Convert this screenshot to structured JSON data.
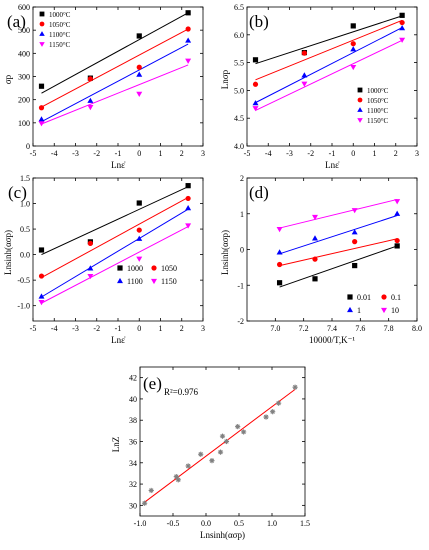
{
  "chart_data": [
    {
      "id": "a",
      "type": "scatter",
      "panel_label": "(a)",
      "xlabel": "Lnε̇",
      "ylabel": "σp",
      "xlim": [
        -5,
        3
      ],
      "ylim": [
        0,
        600
      ],
      "xticks": [
        -5,
        -4,
        -3,
        -2,
        -1,
        0,
        1,
        2,
        3
      ],
      "yticks": [
        0,
        100,
        200,
        300,
        400,
        500,
        600
      ],
      "legend_position": "top-left",
      "series": [
        {
          "name": "1000°C",
          "color": "#000000",
          "marker": "square",
          "x": [
            -4.6,
            -2.3,
            0,
            2.3
          ],
          "y": [
            258,
            293,
            475,
            575
          ],
          "fit": [
            [
              -4.6,
              228
            ],
            [
              2.3,
              575
            ]
          ]
        },
        {
          "name": "1050°C",
          "color": "#ff0000",
          "marker": "circle",
          "x": [
            -4.6,
            -2.3,
            0,
            2.3
          ],
          "y": [
            165,
            290,
            340,
            505
          ],
          "fit": [
            [
              -4.6,
              168
            ],
            [
              2.3,
              505
            ]
          ]
        },
        {
          "name": "1100°C",
          "color": "#0000ff",
          "marker": "triangle-up",
          "x": [
            -4.6,
            -2.3,
            0,
            2.3
          ],
          "y": [
            115,
            195,
            308,
            455
          ],
          "fit": [
            [
              -4.6,
              105
            ],
            [
              2.3,
              440
            ]
          ]
        },
        {
          "name": "1150°C",
          "color": "#ff00ff",
          "marker": "triangle-down",
          "x": [
            -4.6,
            -2.3,
            0,
            2.3
          ],
          "y": [
            98,
            168,
            225,
            368
          ],
          "fit": [
            [
              -4.6,
              95
            ],
            [
              2.3,
              350
            ]
          ]
        }
      ]
    },
    {
      "id": "b",
      "type": "scatter",
      "panel_label": "(b)",
      "xlabel": "Lnε̇",
      "ylabel": "Lnσp",
      "xlim": [
        -5,
        3
      ],
      "ylim": [
        4.0,
        6.5
      ],
      "xticks": [
        -5,
        -4,
        -3,
        -2,
        -1,
        0,
        1,
        2,
        3
      ],
      "yticks": [
        4.0,
        4.5,
        5.0,
        5.5,
        6.0,
        6.5
      ],
      "legend_position": "bottom-right",
      "series": [
        {
          "name": "1000°C",
          "color": "#000000",
          "marker": "square",
          "x": [
            -4.6,
            -2.3,
            0,
            2.3
          ],
          "y": [
            5.55,
            5.68,
            6.16,
            6.35
          ],
          "fit": [
            [
              -4.6,
              5.48
            ],
            [
              2.3,
              6.34
            ]
          ]
        },
        {
          "name": "1050°C",
          "color": "#ff0000",
          "marker": "circle",
          "x": [
            -4.6,
            -2.3,
            0,
            2.3
          ],
          "y": [
            5.11,
            5.67,
            5.84,
            6.22
          ],
          "fit": [
            [
              -4.6,
              5.19
            ],
            [
              2.3,
              6.26
            ]
          ]
        },
        {
          "name": "1100°C",
          "color": "#0000ff",
          "marker": "triangle-up",
          "x": [
            -4.6,
            -2.3,
            0,
            2.3
          ],
          "y": [
            4.77,
            5.27,
            5.74,
            6.12
          ],
          "fit": [
            [
              -4.6,
              4.78
            ],
            [
              2.3,
              6.13
            ]
          ]
        },
        {
          "name": "1150°C",
          "color": "#ff00ff",
          "marker": "triangle-down",
          "x": [
            -4.6,
            -2.3,
            0,
            2.3
          ],
          "y": [
            4.68,
            5.12,
            5.42,
            5.91
          ],
          "fit": [
            [
              -4.6,
              4.64
            ],
            [
              2.3,
              5.9
            ]
          ]
        }
      ]
    },
    {
      "id": "c",
      "type": "scatter",
      "panel_label": "(c)",
      "xlabel": "Lnε̇",
      "ylabel": "Lnsinh(ασp)",
      "xlim": [
        -5,
        3
      ],
      "ylim": [
        -1.3,
        1.5
      ],
      "xticks": [
        -5,
        -4,
        -3,
        -2,
        -1,
        0,
        1,
        2,
        3
      ],
      "yticks": [
        -1.0,
        -0.5,
        0.0,
        0.5,
        1.0,
        1.5
      ],
      "legend_position": "bottom-right",
      "series": [
        {
          "name": "1000",
          "color": "#000000",
          "marker": "square",
          "x": [
            -4.6,
            -2.3,
            0,
            2.3
          ],
          "y": [
            0.09,
            0.25,
            1.01,
            1.35
          ],
          "fit": [
            [
              -4.6,
              0.0
            ],
            [
              2.3,
              1.33
            ]
          ]
        },
        {
          "name": "1050",
          "color": "#ff0000",
          "marker": "circle",
          "x": [
            -4.6,
            -2.3,
            0,
            2.3
          ],
          "y": [
            -0.42,
            0.22,
            0.48,
            1.1
          ],
          "fit": [
            [
              -4.6,
              -0.45
            ],
            [
              2.3,
              1.12
            ]
          ]
        },
        {
          "name": "1100",
          "color": "#0000ff",
          "marker": "triangle-up",
          "x": [
            -4.6,
            -2.3,
            0,
            2.3
          ],
          "y": [
            -0.82,
            -0.27,
            0.31,
            0.91
          ],
          "fit": [
            [
              -4.6,
              -0.83
            ],
            [
              2.3,
              0.89
            ]
          ]
        },
        {
          "name": "1150",
          "color": "#ff00ff",
          "marker": "triangle-down",
          "x": [
            -4.6,
            -2.3,
            0,
            2.3
          ],
          "y": [
            -0.93,
            -0.42,
            -0.08,
            0.57
          ],
          "fit": [
            [
              -4.6,
              -0.95
            ],
            [
              2.3,
              0.55
            ]
          ]
        }
      ]
    },
    {
      "id": "d",
      "type": "scatter",
      "panel_label": "(d)",
      "xlabel": "10000/T,K⁻¹",
      "ylabel": "Lnsinh(ασp)",
      "xlim": [
        6.8,
        8.0
      ],
      "ylim": [
        -2.0,
        2.0
      ],
      "xticks": [
        7.0,
        7.2,
        7.4,
        7.6,
        7.8,
        8.0
      ],
      "yticks": [
        -2,
        -1,
        0,
        1,
        2
      ],
      "legend_position": "bottom-right",
      "series": [
        {
          "name": "0.01",
          "color": "#000000",
          "marker": "square",
          "x": [
            7.03,
            7.28,
            7.56,
            7.86
          ],
          "y": [
            -0.93,
            -0.82,
            -0.45,
            0.1
          ],
          "fit": [
            [
              7.03,
              -1.05
            ],
            [
              7.86,
              0.1
            ]
          ]
        },
        {
          "name": "0.1",
          "color": "#ff0000",
          "marker": "circle",
          "x": [
            7.03,
            7.28,
            7.56,
            7.86
          ],
          "y": [
            -0.42,
            -0.27,
            0.22,
            0.25
          ],
          "fit": [
            [
              7.03,
              -0.45
            ],
            [
              7.86,
              0.3
            ]
          ]
        },
        {
          "name": "1",
          "color": "#0000ff",
          "marker": "triangle-up",
          "x": [
            7.03,
            7.28,
            7.56,
            7.86
          ],
          "y": [
            -0.08,
            0.31,
            0.48,
            1.0
          ],
          "fit": [
            [
              7.03,
              -0.12
            ],
            [
              7.86,
              0.95
            ]
          ]
        },
        {
          "name": "10",
          "color": "#ff00ff",
          "marker": "triangle-down",
          "x": [
            7.03,
            7.28,
            7.56,
            7.86
          ],
          "y": [
            0.57,
            0.91,
            1.1,
            1.35
          ],
          "fit": [
            [
              7.03,
              0.6
            ],
            [
              7.86,
              1.4
            ]
          ]
        }
      ]
    },
    {
      "id": "e",
      "type": "scatter",
      "panel_label": "(e)",
      "annotation": "R²=0.976",
      "xlabel": "Lnsinh(ασp)",
      "ylabel": "LnZ",
      "xlim": [
        -1.0,
        1.5
      ],
      "ylim": [
        29,
        43
      ],
      "xticks": [
        -1.0,
        -0.5,
        0.0,
        0.5,
        1.0,
        1.5
      ],
      "yticks": [
        30,
        32,
        34,
        36,
        38,
        40,
        42
      ],
      "series": [
        {
          "color": "#808080",
          "line_color": "#ff0000",
          "marker": "star",
          "x": [
            -0.93,
            -0.83,
            -0.45,
            -0.42,
            -0.27,
            -0.08,
            0.09,
            0.22,
            0.25,
            0.31,
            0.48,
            0.57,
            0.91,
            1.01,
            1.1,
            1.35
          ],
          "y": [
            30.2,
            31.4,
            32.7,
            32.4,
            33.7,
            34.8,
            34.2,
            35.0,
            36.5,
            36.0,
            37.4,
            36.9,
            38.3,
            38.8,
            39.6,
            41.1
          ],
          "fit": [
            [
              -0.93,
              30.3
            ],
            [
              1.35,
              40.9
            ]
          ]
        }
      ]
    }
  ]
}
